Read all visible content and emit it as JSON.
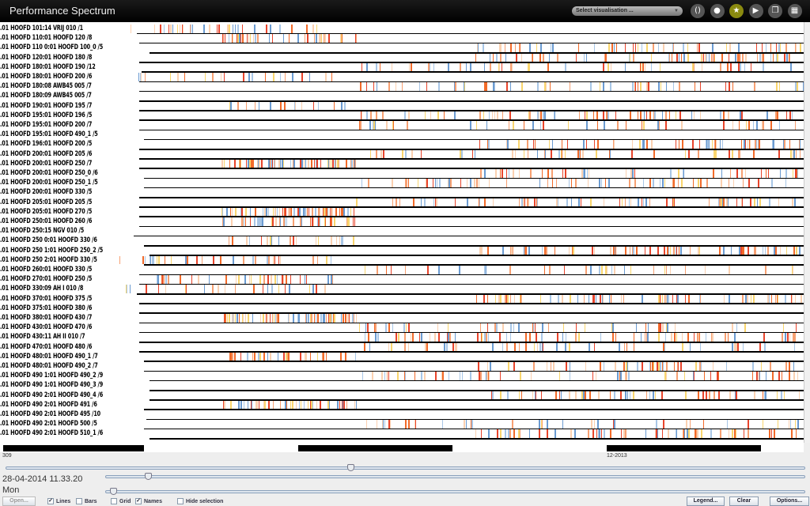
{
  "window": {
    "title": "Performance Spectrum"
  },
  "toolbar": {
    "select_visualisation": "Select visualisation ...",
    "buttons": [
      {
        "name": "brackets-icon",
        "glyph": "()",
        "active": false
      },
      {
        "name": "drop-icon",
        "glyph": "●",
        "active": false
      },
      {
        "name": "star-icon",
        "glyph": "★",
        "active": true
      },
      {
        "name": "play-icon",
        "glyph": "▶",
        "active": false
      },
      {
        "name": "copy-icon",
        "glyph": "❐",
        "active": false
      },
      {
        "name": "grid-icon",
        "glyph": "▦",
        "active": false
      }
    ],
    "accent": "#8a8a10"
  },
  "segment_prefix": ".01 HOOFD ",
  "segments": [
    "101:14 VRIJ 010 /1",
    "110:01 HOOFD 120 /8",
    "110 0:01 HOOFD 100_0 /5",
    "120:01 HOOFD 180 /8",
    "180:01 HOOFD 190 /12",
    "180:01 HOOFD 200 /6",
    "180:08 AWB45 005 /7",
    "180:09 AWB45 005 /7",
    "190:01 HOOFD 195 /7",
    "195:01 HOOFD 196 /5",
    "195:01 HOOFD 200 /7",
    "195:01 HOOFD 490_1 /5",
    "196:01 HOOFD 200 /5",
    "200:01 HOOFD 205 /6",
    "200:01 HOOFD 250 /7",
    "200:01 HOOFD 250_0 /6",
    "200:01 HOOFD 250_1 /5",
    "200:01 HOOFD 330 /5",
    "205:01 HOOFD 205 /5",
    "205:01 HOOFD 270 /5",
    "250:01 HOOFD 260 /6",
    "250:15 NGV 010 /5",
    "250 0:01 HOOFD 330 /6",
    "250 1:01 HOOFD 250_2 /5",
    "250 2:01 HOOFD 330 /5",
    "260:01 HOOFD 330 /5",
    "270:01 HOOFD 250 /5",
    "330:09 AH I 010 /8",
    "370:01 HOOFD 375 /5",
    "375:01 HOOFD 380 /6",
    "380:01 HOOFD 430 /7",
    "430:01 HOOFD 470 /6",
    "430:11 AH II 010 /7",
    "470:01 HOOFD 480 /6",
    "480:01 HOOFD 490_1 /7",
    "480:01 HOOFD 490_2 /7",
    "490 1:01 HOOFD 490_2 /9",
    "490 1:01 HOOFD 490_3 /9",
    "490 2:01 HOOFD 490_4 /6",
    "490 2:01 HOOFD 491 /6",
    "490 2:01 HOOFD 495 /10",
    "490 2:01 HOOFD 500 /5",
    "490 2:01 HOOFD 510_1 /6"
  ],
  "spectrum_colors": [
    "#f26b2a",
    "#f7a072",
    "#fbd0b0",
    "#f9d56e",
    "#6b9bd1",
    "#a8c6e6",
    "#e8452c"
  ],
  "timeline": {
    "start_label": "309",
    "mid_label": "12-2013"
  },
  "sliders": {
    "time_position": 0.43,
    "zoom": 0.06,
    "speed": 0.01
  },
  "status": {
    "datetime": "28-04-2014 11.33.20",
    "day": "Mon"
  },
  "bottom": {
    "open": "Open...",
    "lines": "Lines",
    "lines_checked": true,
    "bars": "Bars",
    "bars_checked": false,
    "grid": "Grid",
    "grid_checked": false,
    "names": "Names",
    "names_checked": true,
    "hide_selection": "Hide selection",
    "hide_selection_checked": false,
    "legend": "Legend...",
    "clear": "Clear",
    "options": "Options..."
  }
}
